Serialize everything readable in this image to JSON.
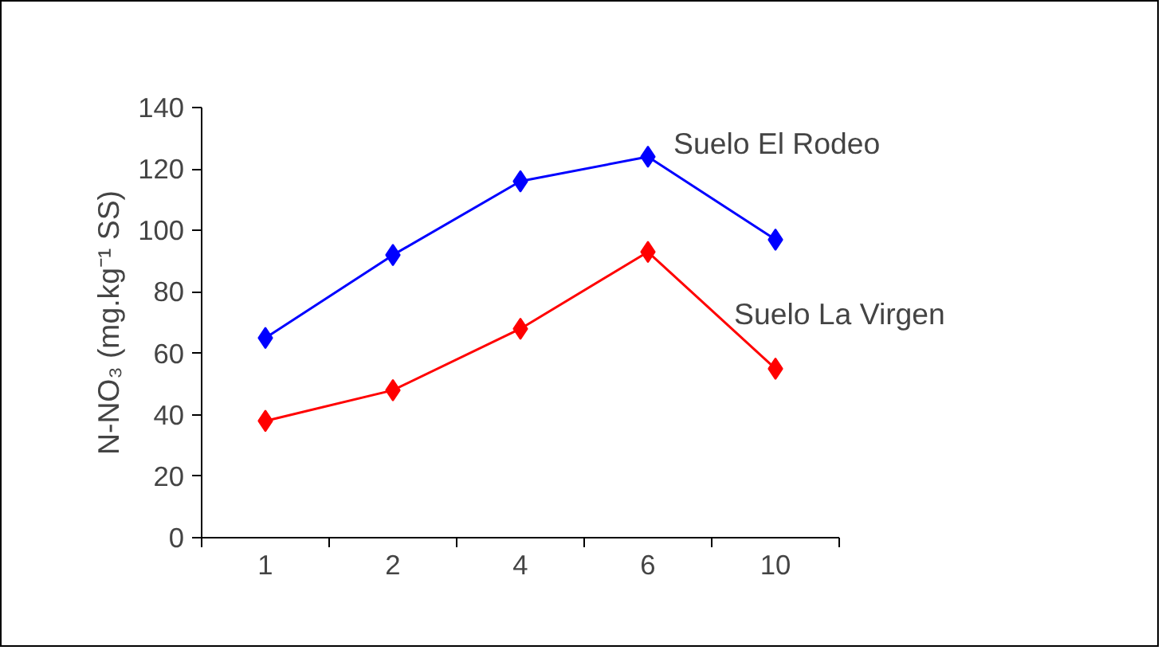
{
  "chart_data": {
    "type": "line",
    "categories": [
      "1",
      "2",
      "4",
      "6",
      "10"
    ],
    "ylabel": "N-NO₃ (mg.kg⁻¹ SS)",
    "ylim": [
      0,
      140
    ],
    "yticks": [
      0,
      20,
      40,
      60,
      80,
      100,
      120,
      140
    ],
    "marker": "diamond",
    "grid": false,
    "legend": false,
    "series": [
      {
        "name": "Suelo El Rodeo",
        "color": "#0000ff",
        "values": [
          65,
          92,
          116,
          124,
          97
        ]
      },
      {
        "name": "Suelo La Virgen",
        "color": "#ff0000",
        "values": [
          38,
          48,
          68,
          93,
          55
        ]
      }
    ]
  }
}
